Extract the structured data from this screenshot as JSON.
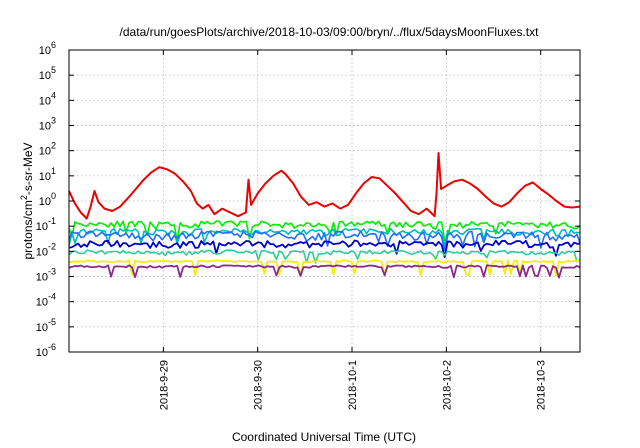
{
  "chart_data": {
    "type": "line",
    "title": "/data/run/goesPlots/archive/2018-10-03/09:00/bryn/../flux/5daysMoonFluxes.txt",
    "xlabel": "Coordinated Universal Time (UTC)",
    "ylabel_parts": [
      "protons/cm",
      "2",
      "-s-sr-MeV"
    ],
    "scale": "log",
    "xlim": [
      "2018-09-28 00:00",
      "2018-10-03 10:00"
    ],
    "ylim": [
      1e-06,
      1000000.0
    ],
    "grid": true,
    "legend": "none",
    "x_ticks": [
      {
        "date": "2018-09-29 00:00",
        "label": "2018-9-29"
      },
      {
        "date": "2018-09-30 00:00",
        "label": "2018-9-30"
      },
      {
        "date": "2018-10-01 00:00",
        "label": "2018-10-1"
      },
      {
        "date": "2018-10-02 00:00",
        "label": "2018-10-2"
      },
      {
        "date": "2018-10-03 00:00",
        "label": "2018-10-3"
      }
    ],
    "y_ticks": [
      {
        "value": 1e-06,
        "base": "10",
        "exp": "-6"
      },
      {
        "value": 1e-05,
        "base": "10",
        "exp": "-5"
      },
      {
        "value": 0.0001,
        "base": "10",
        "exp": "-4"
      },
      {
        "value": 0.001,
        "base": "10",
        "exp": "-3"
      },
      {
        "value": 0.01,
        "base": "10",
        "exp": "-2"
      },
      {
        "value": 0.1,
        "base": "10",
        "exp": "-1"
      },
      {
        "value": 1,
        "base": "10",
        "exp": "0"
      },
      {
        "value": 10,
        "base": "10",
        "exp": "1"
      },
      {
        "value": 100,
        "base": "10",
        "exp": "2"
      },
      {
        "value": 1000,
        "base": "10",
        "exp": "3"
      },
      {
        "value": 10000,
        "base": "10",
        "exp": "4"
      },
      {
        "value": 100000,
        "base": "10",
        "exp": "5"
      },
      {
        "value": 1000000,
        "base": "10",
        "exp": "6"
      }
    ],
    "series": [
      {
        "color": "#ee0000",
        "width": 2,
        "points": [
          [
            "2018-09-28 00:00",
            2.5
          ],
          [
            "2018-09-28 01:30",
            0.8
          ],
          [
            "2018-09-28 03:00",
            0.35
          ],
          [
            "2018-09-28 04:30",
            0.2
          ],
          [
            "2018-09-28 05:30",
            0.6
          ],
          [
            "2018-09-28 06:30",
            2.5
          ],
          [
            "2018-09-28 07:30",
            0.9
          ],
          [
            "2018-09-28 09:00",
            0.5
          ],
          [
            "2018-09-28 11:00",
            0.4
          ],
          [
            "2018-09-28 13:00",
            0.6
          ],
          [
            "2018-09-28 15:00",
            1.3
          ],
          [
            "2018-09-28 17:00",
            3.0
          ],
          [
            "2018-09-28 19:00",
            7.0
          ],
          [
            "2018-09-28 21:00",
            14
          ],
          [
            "2018-09-28 23:00",
            22
          ],
          [
            "2018-09-29 01:00",
            18
          ],
          [
            "2018-09-29 03:00",
            12
          ],
          [
            "2018-09-29 05:00",
            6
          ],
          [
            "2018-09-29 07:00",
            2.5
          ],
          [
            "2018-09-29 08:30",
            0.8
          ],
          [
            "2018-09-29 10:00",
            0.5
          ],
          [
            "2018-09-29 11:30",
            0.7
          ],
          [
            "2018-09-29 13:00",
            0.3
          ],
          [
            "2018-09-29 15:00",
            0.5
          ],
          [
            "2018-09-29 17:00",
            0.35
          ],
          [
            "2018-09-29 19:00",
            0.25
          ],
          [
            "2018-09-29 21:00",
            0.35
          ],
          [
            "2018-09-29 21:40",
            7.0
          ],
          [
            "2018-09-29 22:20",
            0.7
          ],
          [
            "2018-09-30 00:00",
            2.0
          ],
          [
            "2018-09-30 02:00",
            5.0
          ],
          [
            "2018-09-30 04:00",
            10
          ],
          [
            "2018-09-30 06:00",
            16
          ],
          [
            "2018-09-30 07:00",
            12
          ],
          [
            "2018-09-30 09:00",
            5.0
          ],
          [
            "2018-09-30 11:00",
            1.5
          ],
          [
            "2018-09-30 13:00",
            0.7
          ],
          [
            "2018-09-30 15:00",
            0.9
          ],
          [
            "2018-09-30 17:00",
            0.6
          ],
          [
            "2018-09-30 19:00",
            0.8
          ],
          [
            "2018-09-30 21:00",
            0.5
          ],
          [
            "2018-09-30 23:00",
            0.7
          ],
          [
            "2018-10-01 01:00",
            2.0
          ],
          [
            "2018-10-01 03:00",
            5.0
          ],
          [
            "2018-10-01 05:00",
            9.0
          ],
          [
            "2018-10-01 07:00",
            8.0
          ],
          [
            "2018-10-01 09:00",
            4.0
          ],
          [
            "2018-10-01 11:00",
            2.0
          ],
          [
            "2018-10-01 13:00",
            0.9
          ],
          [
            "2018-10-01 15:00",
            0.4
          ],
          [
            "2018-10-01 17:00",
            0.3
          ],
          [
            "2018-10-01 19:00",
            0.5
          ],
          [
            "2018-10-01 21:00",
            0.25
          ],
          [
            "2018-10-01 21:30",
            2.0
          ],
          [
            "2018-10-01 22:00",
            80
          ],
          [
            "2018-10-01 22:40",
            3.0
          ],
          [
            "2018-10-02 00:00",
            4.0
          ],
          [
            "2018-10-02 02:00",
            6.0
          ],
          [
            "2018-10-02 04:00",
            7.0
          ],
          [
            "2018-10-02 06:00",
            5.0
          ],
          [
            "2018-10-02 08:00",
            3.0
          ],
          [
            "2018-10-02 10:00",
            1.5
          ],
          [
            "2018-10-02 12:00",
            0.8
          ],
          [
            "2018-10-02 14:00",
            0.6
          ],
          [
            "2018-10-02 16:00",
            0.9
          ],
          [
            "2018-10-02 18:00",
            2.0
          ],
          [
            "2018-10-02 20:00",
            4.0
          ],
          [
            "2018-10-02 22:00",
            5.5
          ],
          [
            "2018-10-03 00:00",
            3.0
          ],
          [
            "2018-10-03 02:00",
            1.8
          ],
          [
            "2018-10-03 04:00",
            1.0
          ],
          [
            "2018-10-03 06:00",
            0.6
          ],
          [
            "2018-10-03 08:00",
            0.55
          ],
          [
            "2018-10-03 10:00",
            0.6
          ]
        ]
      },
      {
        "color": "#00ee00",
        "width": 1.6,
        "base": 0.12,
        "amp": 0.3,
        "dips": 0.35,
        "seed": 11
      },
      {
        "color": "#00bbbb",
        "width": 1.6,
        "base": 0.06,
        "amp": 0.3,
        "dips": 0.4,
        "seed": 23
      },
      {
        "color": "#1e70ff",
        "width": 1.6,
        "base": 0.045,
        "amp": 0.35,
        "dips": 0.4,
        "seed": 37
      },
      {
        "color": "#0000cc",
        "width": 1.8,
        "base": 0.02,
        "amp": 0.3,
        "dips": 0.45,
        "seed": 53
      },
      {
        "color": "#33cc99",
        "width": 1.6,
        "base": 0.009,
        "amp": 0.2,
        "dips": 0.5,
        "seed": 71
      },
      {
        "color": "#f5ee00",
        "width": 1.8,
        "base": 0.004,
        "amp": 0.08,
        "dips": 0.3,
        "seed": 89
      },
      {
        "color": "#8b2a8b",
        "width": 1.8,
        "base": 0.0025,
        "amp": 0.1,
        "dips": 0.4,
        "seed": 97
      }
    ]
  }
}
